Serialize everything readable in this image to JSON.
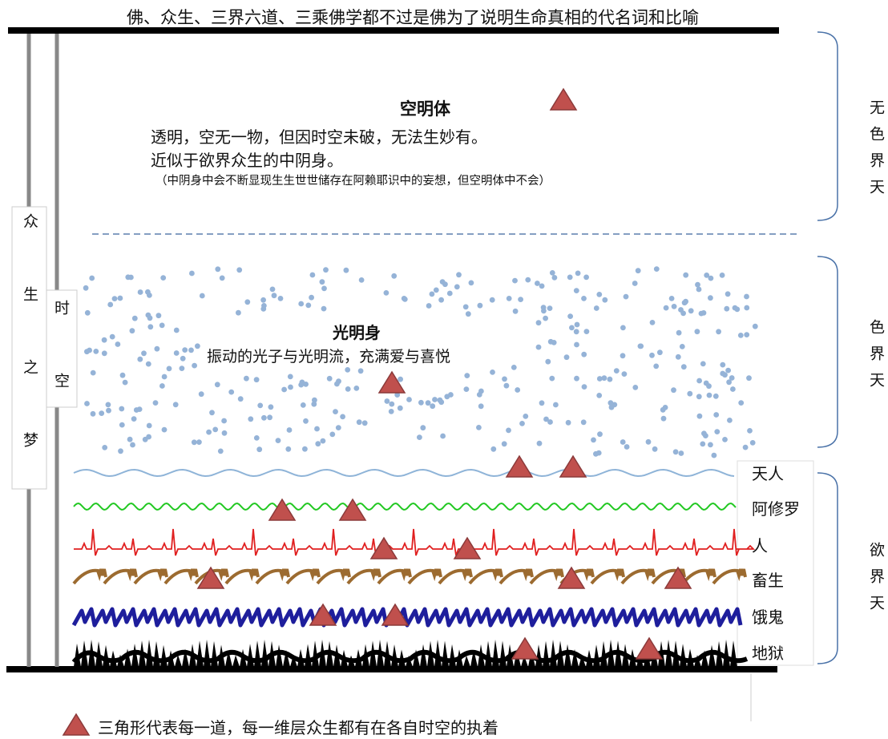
{
  "header": {
    "title": "佛、众生、三界六道、三乘佛学都不过是佛为了说明生命真相的代名词和比喻"
  },
  "left": {
    "dream": "众生之梦",
    "spacetime": "时空"
  },
  "formless": {
    "title": "空明体",
    "lines": [
      "透明，空无一物，但因时空未破，无法生妙有。",
      "近似于欲界众生的中阴身。"
    ],
    "note": "（中阴身中会不断显现生生世世储存在阿赖耶识中的妄想，但空明体中不会）"
  },
  "form": {
    "title": "光明身",
    "line": "振动的光子与光明流，充满爱与喜悦"
  },
  "realms": [
    "天人",
    "阿修罗",
    "人",
    "畜生",
    "饿鬼",
    "地狱"
  ],
  "heavens": [
    "无色界天",
    "色界天",
    "欲界天"
  ],
  "legend": "三角形代表每一道，每一维层众生都有在各自时空的执着"
}
